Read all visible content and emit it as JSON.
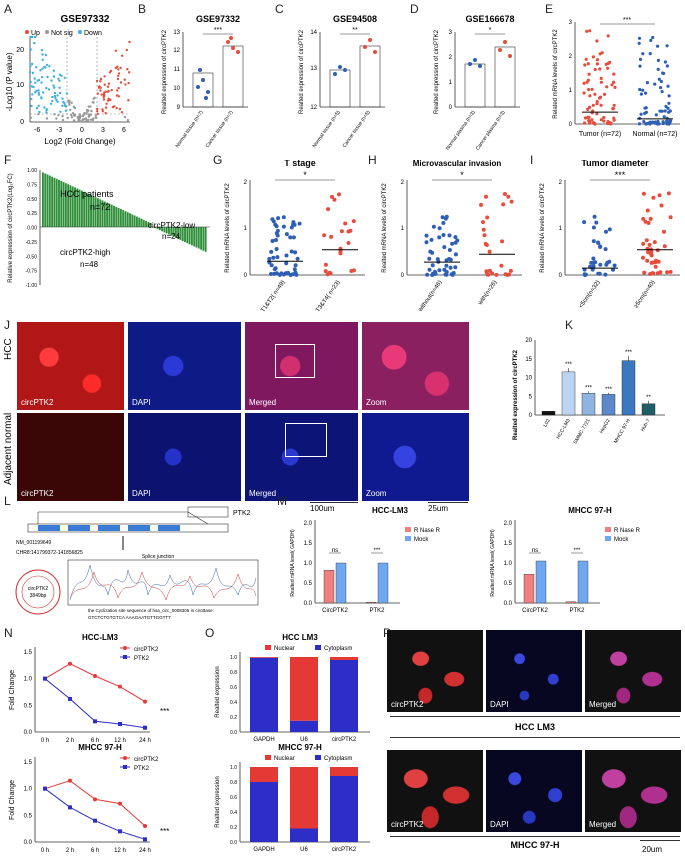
{
  "panels": {
    "A": {
      "label": "A",
      "title": "GSE97332",
      "legend": [
        "Up",
        "Not sig",
        "Down"
      ],
      "xlabel": "Log2 (Fold Change)",
      "ylabel": "-Log10 (P value)",
      "xticks": [
        "-6",
        "-3",
        "0",
        "3",
        "6"
      ],
      "yticks": [
        "0",
        "10",
        "20"
      ]
    },
    "B": {
      "label": "B",
      "title": "GSE97332",
      "ylabel": "Realted expression of circPTK2",
      "yticks": [
        "9",
        "10",
        "11",
        "12",
        "13"
      ],
      "sig": "***"
    },
    "C": {
      "label": "C",
      "title": "GSE94508",
      "ylabel": "Realted expression of circPTK2",
      "yticks": [
        "12",
        "13",
        "14"
      ],
      "sig": "**"
    },
    "D": {
      "label": "D",
      "title": "GSE166678",
      "ylabel": "Realted expression of circPTK2",
      "yticks": [
        "0",
        "1",
        "2",
        "3"
      ],
      "sig": "*"
    },
    "E": {
      "label": "E",
      "ylabel": "Related mRNA levels of circPTK2",
      "yticks": [
        "0",
        "1",
        "2",
        "3"
      ],
      "sig": "***"
    },
    "F": {
      "label": "F",
      "ylabel": "Relative expression of circPTK2(Log₂FC)",
      "yticks": [
        "1.00",
        "0.75",
        "0.50",
        "0.25",
        "0.00",
        "-0.25",
        "-0.50",
        "-0.75",
        "-1.00"
      ],
      "t1": "HCC patients",
      "t2": "n=72",
      "t3": "circPTK2-low",
      "t4": "n=24",
      "t5": "circPTK2-high",
      "t6": "n=48"
    },
    "G": {
      "label": "G",
      "title": "T stage",
      "ylabel": "Related mRNA levels of circPTK2",
      "yticks": [
        "0",
        "1",
        "2"
      ],
      "sig": "*"
    },
    "H": {
      "label": "H",
      "title": "Microvascular invasion",
      "ylabel": "Realted mRNA levels of circPTK2",
      "yticks": [
        "0",
        "1",
        "2"
      ],
      "sig": "*"
    },
    "I": {
      "label": "I",
      "title": "Tumor diameter",
      "ylabel": "Related mRNA levels of circPTK2",
      "yticks": [
        "0",
        "1",
        "2"
      ],
      "sig": "***"
    },
    "J": {
      "label": "J",
      "row1": "HCC",
      "row2": "Adjacent normal",
      "c1": "circPTK2",
      "c2": "DAPI",
      "c3": "Merged",
      "c4": "Zoom",
      "scale1": "100um",
      "scale2": "25um"
    },
    "K": {
      "label": "K",
      "ylabel": "Realted expression of circPTK2",
      "yticks": [
        "0",
        "5",
        "10",
        "15",
        "20"
      ]
    },
    "L": {
      "label": "L",
      "gene": "PTK2",
      "hsa": "hsa_circ_0008305",
      "size": "circPTK2 3849bp",
      "nm": "NM_001199649",
      "chr": "CHR8:141799372-141856825",
      "splice": "Splice junction",
      "seq1": "the Cyclization site sequence of hsa_circ_0008305 in circBase:",
      "seq2": "GTCTCTGTGTCA AAAGAATGTTGGTTT"
    },
    "M": {
      "label": "M",
      "left": {
        "title": "HCC-LM3",
        "ylabel": "Realted mRNA level( GAPDH)"
      },
      "right": {
        "title": "MHCC 97-H",
        "ylabel": "Realted mRNA level( GAPDH)"
      },
      "legend": [
        "R Nase R",
        "Mock"
      ],
      "cats": [
        "CircPTK2",
        "PTK2"
      ],
      "ns": "ns",
      "sig": "***",
      "yticks": [
        "0.0",
        "0.5",
        "1.0",
        "1.5",
        "2.0"
      ]
    },
    "N": {
      "label": "N",
      "top": {
        "title": "HCC-LM3"
      },
      "bottom": {
        "title": "MHCC 97-H"
      },
      "legend": [
        "circPTK2",
        "PTK2"
      ],
      "ylabel": "Fold Change",
      "xticks": [
        "0 h",
        "2 h",
        "6 h",
        "12 h",
        "24 h"
      ],
      "yticksTop": [
        "0.0",
        "0.5",
        "1.0",
        "1.5"
      ],
      "yticksBot": [
        "0.0",
        "0.5",
        "1.0",
        "1.5"
      ],
      "sig": "***"
    },
    "O": {
      "label": "O",
      "top": {
        "title": "HCC LM3"
      },
      "bottom": {
        "title": "MHCC 97-H"
      },
      "legend": [
        "Nuclear",
        "Cytoplasm"
      ],
      "ylabel": "Realted expression",
      "cats": [
        "GAPDH",
        "U6",
        "circPTK2"
      ],
      "yticks": [
        "0.0",
        "0.2",
        "0.4",
        "0.6",
        "0.8",
        "1.0"
      ]
    },
    "P": {
      "label": "P",
      "c1": "circPTK2",
      "c2": "DAPI",
      "c3": "Merged",
      "row1": "HCC LM3",
      "row2": "MHCC 97-H",
      "scale": "20um"
    }
  },
  "chart_data": [
    {
      "type": "scatter",
      "panel": "B",
      "categories": [
        "Normal tissue (n=7)",
        "Cancer tissue (n=7)"
      ],
      "means": [
        10.8,
        12.3
      ],
      "ylim": [
        9,
        13
      ]
    },
    {
      "type": "scatter",
      "panel": "C",
      "categories": [
        "Normal tissue (n=5)",
        "Cancer tissue (n=5)"
      ],
      "means": [
        13.0,
        13.7
      ],
      "ylim": [
        12,
        14
      ]
    },
    {
      "type": "scatter",
      "panel": "D",
      "categories": [
        "Normal plasma (n=3)",
        "Cancer plasma (n=3)"
      ],
      "means": [
        1.7,
        2.4
      ],
      "ylim": [
        0,
        3
      ]
    },
    {
      "type": "scatter",
      "panel": "E",
      "categories": [
        "Tumor (n=72)",
        "Normal (n=72)"
      ],
      "medians": [
        0.35,
        0.15
      ],
      "ylim": [
        0,
        3
      ]
    },
    {
      "type": "bar",
      "panel": "F",
      "n": 72,
      "high": 48,
      "low": 24,
      "ylim": [
        -1,
        1
      ]
    },
    {
      "type": "scatter",
      "panel": "G",
      "categories": [
        "T1&T2( n=49)",
        "T3&T4( n=23)"
      ],
      "means": [
        0.3,
        0.55
      ],
      "ylim": [
        0,
        2
      ]
    },
    {
      "type": "scatter",
      "panel": "H",
      "categories": [
        "without(n=46)",
        "with(n=26)"
      ],
      "means": [
        0.28,
        0.45
      ],
      "ylim": [
        0,
        2
      ]
    },
    {
      "type": "scatter",
      "panel": "I",
      "categories": [
        "<5cm(n=32)",
        ">=5cm(n=40)"
      ],
      "means": [
        0.15,
        0.55
      ],
      "ylim": [
        0,
        2
      ]
    },
    {
      "type": "bar",
      "panel": "K",
      "categories": [
        "L02",
        "HCC-LM3",
        "SMMC-7721",
        "HepG2",
        "MHCC 97-H",
        "Huh-7"
      ],
      "values": [
        1.0,
        11.5,
        5.8,
        5.5,
        14.5,
        3.0
      ],
      "errors": [
        0,
        1.0,
        0.5,
        0.4,
        1.2,
        0.8
      ],
      "sig": [
        "",
        "***",
        "***",
        "***",
        "***",
        "**"
      ],
      "ylim": [
        0,
        20
      ]
    },
    {
      "type": "bar",
      "panel": "M-left",
      "categories": [
        "CircPTK2",
        "PTK2"
      ],
      "series": [
        {
          "name": "R Nase R",
          "values": [
            0.82,
            0.02
          ]
        },
        {
          "name": "Mock",
          "values": [
            1.0,
            1.0
          ]
        }
      ],
      "ylim": [
        0,
        2
      ]
    },
    {
      "type": "bar",
      "panel": "M-right",
      "categories": [
        "CircPTK2",
        "PTK2"
      ],
      "series": [
        {
          "name": "R Nase R",
          "values": [
            0.72,
            0.03
          ]
        },
        {
          "name": "Mock",
          "values": [
            1.05,
            1.05
          ]
        }
      ],
      "ylim": [
        0,
        2
      ]
    },
    {
      "type": "line",
      "panel": "N-top",
      "x": [
        "0 h",
        "2 h",
        "6 h",
        "12 h",
        "24 h"
      ],
      "series": [
        {
          "name": "circPTK2",
          "values": [
            1.0,
            1.28,
            1.05,
            0.85,
            0.57
          ]
        },
        {
          "name": "PTK2",
          "values": [
            1.0,
            0.62,
            0.2,
            0.15,
            0.08
          ]
        }
      ],
      "ylim": [
        0,
        1.5
      ]
    },
    {
      "type": "line",
      "panel": "N-bottom",
      "x": [
        "0 h",
        "2 h",
        "6 h",
        "12 h",
        "24 h"
      ],
      "series": [
        {
          "name": "circPTK2",
          "values": [
            1.0,
            1.15,
            0.8,
            0.72,
            0.3
          ]
        },
        {
          "name": "PTK2",
          "values": [
            1.0,
            0.65,
            0.4,
            0.2,
            0.05
          ]
        }
      ],
      "ylim": [
        0,
        1.5
      ]
    },
    {
      "type": "bar",
      "panel": "O-top",
      "categories": [
        "GAPDH",
        "U6",
        "circPTK2"
      ],
      "series": [
        {
          "name": "Cytoplasm",
          "values": [
            0.99,
            0.15,
            0.96
          ]
        },
        {
          "name": "Nuclear",
          "values": [
            0.01,
            0.85,
            0.04
          ]
        }
      ],
      "ylim": [
        0,
        1
      ]
    },
    {
      "type": "bar",
      "panel": "O-bottom",
      "categories": [
        "GAPDH",
        "U6",
        "circPTK2"
      ],
      "series": [
        {
          "name": "Cytoplasm",
          "values": [
            0.8,
            0.18,
            0.88
          ]
        },
        {
          "name": "Nuclear",
          "values": [
            0.2,
            0.82,
            0.12
          ]
        }
      ],
      "ylim": [
        0,
        1
      ]
    }
  ]
}
